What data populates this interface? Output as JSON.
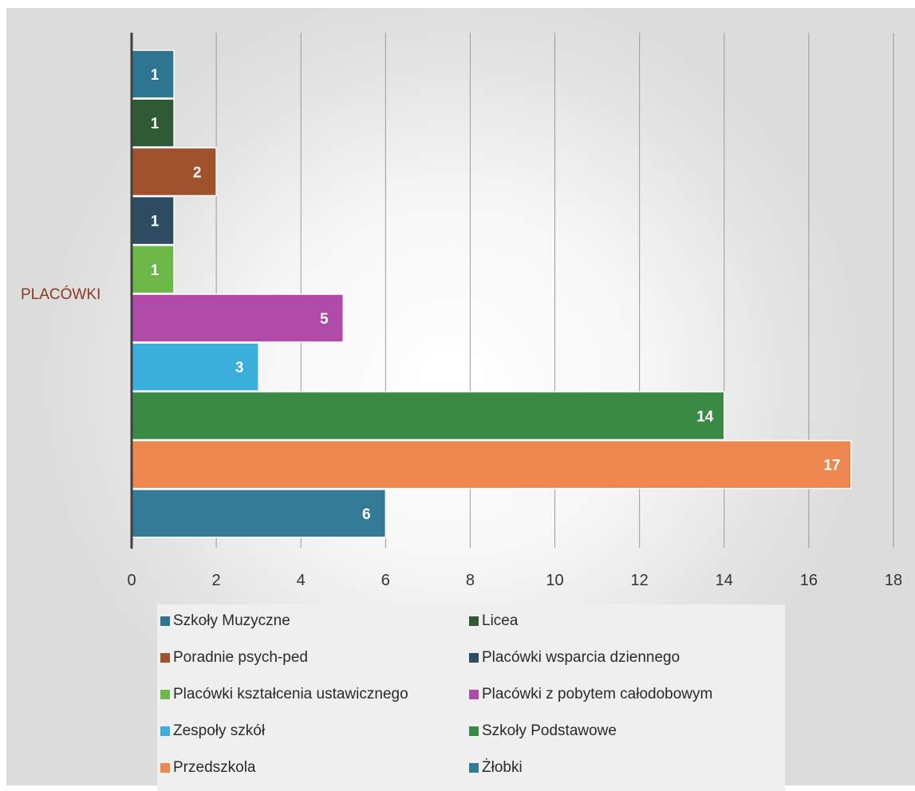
{
  "chart_data": {
    "type": "bar",
    "orientation": "horizontal",
    "category_label": "PLACÓWKI",
    "xlim": [
      0,
      18
    ],
    "x_ticks": [
      0,
      2,
      4,
      6,
      8,
      10,
      12,
      14,
      16,
      18
    ],
    "grid": true,
    "legend_position": "bottom",
    "series": [
      {
        "name": "Szkoły Muzyczne",
        "value": 1,
        "color": "#2e7591"
      },
      {
        "name": "Licea",
        "value": 1,
        "color": "#2f5a33"
      },
      {
        "name": "Poradnie psych-ped",
        "value": 2,
        "color": "#a0522d"
      },
      {
        "name": "Placówki wsparcia dziennego",
        "value": 1,
        "color": "#2d4c62"
      },
      {
        "name": "Placówki kształcenia ustawicznego",
        "value": 1,
        "color": "#6bb848"
      },
      {
        "name": "Placówki z pobytem całodobowym",
        "value": 5,
        "color": "#b04aa8"
      },
      {
        "name": "Zespoły szkół",
        "value": 3,
        "color": "#3aafdc"
      },
      {
        "name": "Szkoły Podstawowe",
        "value": 14,
        "color": "#3a8a45"
      },
      {
        "name": "Przedszkola",
        "value": 17,
        "color": "#ec8750"
      },
      {
        "name": "Żłobki",
        "value": 6,
        "color": "#337a97"
      }
    ]
  }
}
